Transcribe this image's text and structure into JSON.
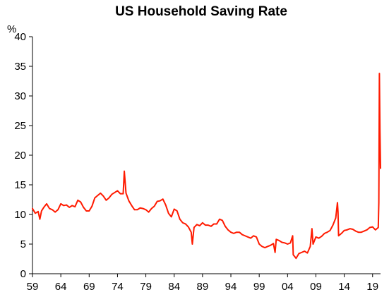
{
  "chart_data": {
    "type": "line",
    "title": "US Household  Saving Rate",
    "ylabel": "%",
    "xlabel": "",
    "xlim": [
      1959,
      2020.4
    ],
    "ylim": [
      0,
      40
    ],
    "y_ticks": [
      0,
      5,
      10,
      15,
      20,
      25,
      30,
      35,
      40
    ],
    "x_ticks": [
      1959,
      1964,
      1969,
      1974,
      1979,
      1984,
      1989,
      1994,
      1999,
      2004,
      2009,
      2014,
      2019
    ],
    "x_tick_labels": [
      "59",
      "64",
      "69",
      "74",
      "79",
      "84",
      "89",
      "94",
      "99",
      "04",
      "09",
      "14",
      "19"
    ],
    "grid": false,
    "legend": "none",
    "series_color": "#ff1a00",
    "series": [
      {
        "x": [
          1959.0,
          1959.5,
          1960.0,
          1960.3,
          1960.6,
          1961.0,
          1961.5,
          1962.0,
          1962.5,
          1963.0,
          1963.5,
          1964.0,
          1964.5,
          1965.0,
          1965.5,
          1966.0,
          1966.5,
          1967.0,
          1967.5,
          1968.0,
          1968.5,
          1969.0,
          1969.5,
          1970.0,
          1970.5,
          1971.0,
          1971.5,
          1972.0,
          1972.5,
          1973.0,
          1973.5,
          1974.0,
          1974.5,
          1975.0,
          1975.2,
          1975.5,
          1976.0,
          1976.5,
          1977.0,
          1977.5,
          1978.0,
          1978.5,
          1979.0,
          1979.5,
          1980.0,
          1980.5,
          1981.0,
          1981.5,
          1982.0,
          1982.5,
          1983.0,
          1983.5,
          1984.0,
          1984.5,
          1985.0,
          1985.5,
          1986.0,
          1986.5,
          1987.0,
          1987.2,
          1987.5,
          1988.0,
          1988.5,
          1989.0,
          1989.5,
          1990.0,
          1990.5,
          1991.0,
          1991.5,
          1992.0,
          1992.5,
          1993.0,
          1993.5,
          1994.0,
          1994.5,
          1995.0,
          1995.5,
          1996.0,
          1996.5,
          1997.0,
          1997.5,
          1998.0,
          1998.5,
          1999.0,
          1999.5,
          2000.0,
          2000.5,
          2001.0,
          2001.5,
          2001.8,
          2002.0,
          2002.5,
          2003.0,
          2003.5,
          2004.0,
          2004.5,
          2004.9,
          2005.0,
          2005.5,
          2006.0,
          2006.5,
          2007.0,
          2007.5,
          2008.0,
          2008.3,
          2008.5,
          2009.0,
          2009.5,
          2010.0,
          2010.5,
          2011.0,
          2011.5,
          2012.0,
          2012.5,
          2012.8,
          2012.9,
          2013.0,
          2013.5,
          2014.0,
          2014.5,
          2015.0,
          2015.5,
          2016.0,
          2016.5,
          2017.0,
          2017.5,
          2018.0,
          2018.5,
          2019.0,
          2019.5,
          2020.0,
          2020.1,
          2020.2,
          2020.3,
          2020.4
        ],
        "values": [
          11.0,
          10.2,
          10.5,
          9.2,
          10.6,
          11.2,
          11.8,
          11.0,
          10.8,
          10.4,
          10.8,
          11.8,
          11.5,
          11.6,
          11.2,
          11.5,
          11.3,
          12.4,
          12.1,
          11.2,
          10.6,
          10.6,
          11.4,
          12.8,
          13.2,
          13.6,
          13.1,
          12.4,
          12.8,
          13.4,
          13.7,
          14.0,
          13.5,
          13.5,
          17.3,
          13.6,
          12.3,
          11.5,
          10.8,
          10.8,
          11.1,
          11.0,
          10.8,
          10.4,
          11.0,
          11.4,
          12.2,
          12.3,
          12.6,
          11.6,
          10.2,
          9.6,
          10.9,
          10.6,
          9.2,
          8.6,
          8.4,
          7.9,
          7.0,
          5.0,
          7.8,
          8.3,
          8.1,
          8.6,
          8.2,
          8.2,
          8.0,
          8.4,
          8.4,
          9.2,
          9.0,
          8.0,
          7.4,
          7.0,
          6.8,
          7.0,
          7.0,
          6.6,
          6.4,
          6.2,
          6.0,
          6.4,
          6.2,
          5.0,
          4.6,
          4.4,
          4.6,
          4.8,
          5.1,
          3.6,
          5.8,
          5.6,
          5.3,
          5.2,
          5.0,
          5.2,
          6.4,
          3.2,
          2.6,
          3.4,
          3.6,
          3.8,
          3.5,
          4.6,
          7.6,
          5.0,
          6.2,
          6.0,
          6.3,
          6.8,
          7.0,
          7.3,
          8.2,
          9.4,
          12.0,
          10.4,
          6.4,
          6.8,
          7.3,
          7.4,
          7.6,
          7.5,
          7.2,
          7.0,
          7.0,
          7.2,
          7.4,
          7.8,
          7.9,
          7.4,
          7.8,
          12.0,
          33.8,
          24.0,
          17.8
        ]
      }
    ]
  }
}
